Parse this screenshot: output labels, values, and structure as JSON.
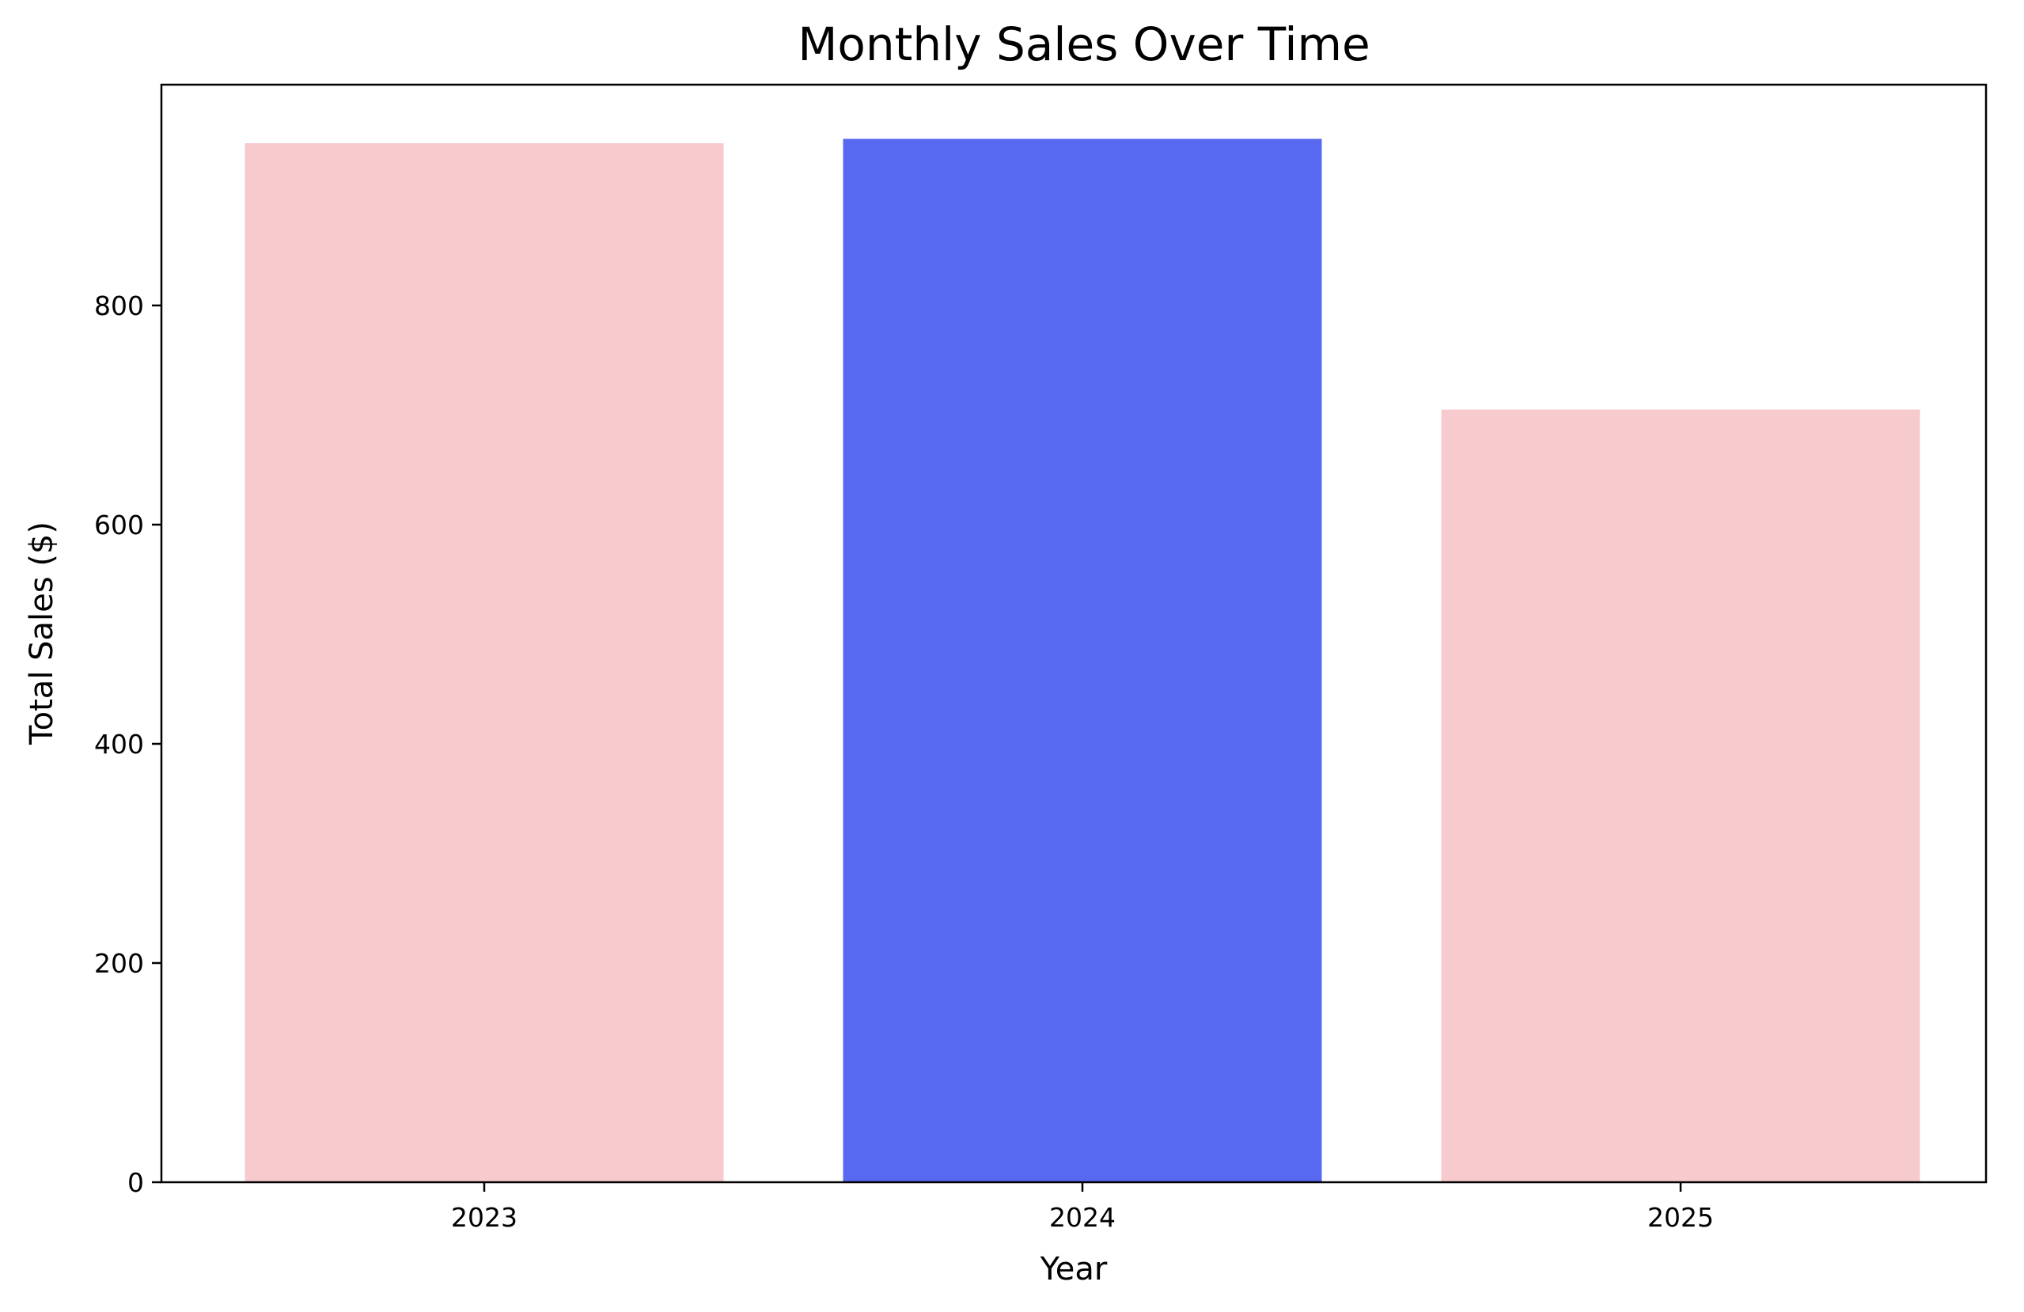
{
  "chart_data": {
    "type": "bar",
    "title": "Monthly Sales Over Time",
    "xlabel": "Year",
    "ylabel": "Total Sales ($)",
    "categories": [
      "2023",
      "2024",
      "2025"
    ],
    "values": [
      948,
      952,
      705
    ],
    "colors": [
      "#f7cace",
      "#5869f1",
      "#f7cace"
    ],
    "ylim": [
      0,
      1000
    ],
    "yticks": [
      0,
      200,
      400,
      600,
      800
    ],
    "grid": false,
    "legend": "none"
  }
}
